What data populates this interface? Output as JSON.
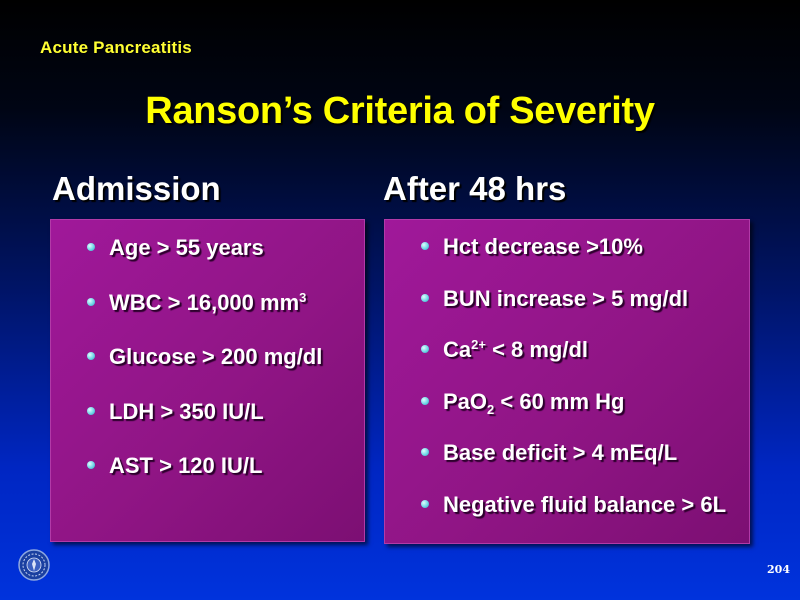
{
  "topic": "Acute Pancreatitis",
  "title": "Ranson’s Criteria of Severity",
  "admission": {
    "heading": "Admission",
    "items": [
      {
        "text": "Age > 55 years",
        "sup": ""
      },
      {
        "text": "WBC > 16,000 mm",
        "sup": "3"
      },
      {
        "text": "Glucose > 200 mg/dl",
        "sup": ""
      },
      {
        "text": "LDH > 350 IU/L",
        "sup": ""
      },
      {
        "text": "AST > 120 IU/L",
        "sup": ""
      }
    ]
  },
  "after48": {
    "heading": "After 48 hrs",
    "items": [
      {
        "pre": "Hct decrease >10%",
        "script": "",
        "post": ""
      },
      {
        "pre": "BUN increase > 5 mg/dl",
        "script": "",
        "post": ""
      },
      {
        "pre": "Ca",
        "script": "2+",
        "post": " < 8 mg/dl"
      },
      {
        "pre": "PaO",
        "script": "2",
        "post": " < 60 mm Hg"
      },
      {
        "pre": "Base deficit > 4 mEq/L",
        "script": "",
        "post": ""
      },
      {
        "pre": "Negative fluid balance > 6L",
        "script": "",
        "post": ""
      }
    ]
  },
  "footer": {
    "page_number": "204",
    "logo_icon": "seal-emblem-icon"
  },
  "colors": {
    "title": "#ffff00",
    "topic": "#ffff33",
    "box": "#901585",
    "bullet": "#6fd6e6",
    "background_top": "#000000",
    "background_bottom": "#0033dd"
  }
}
